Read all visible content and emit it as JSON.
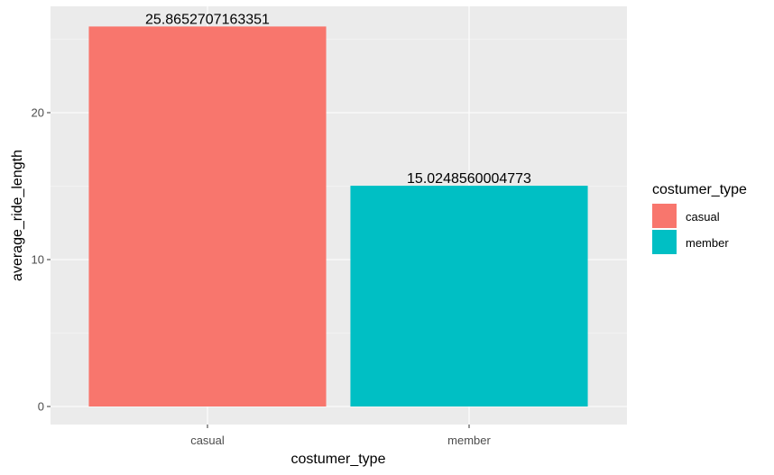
{
  "chart_data": {
    "type": "bar",
    "title": "",
    "xlabel": "costumer_type",
    "ylabel": "average_ride_length",
    "categories": [
      "casual",
      "member"
    ],
    "values": [
      25.8652707163351,
      15.0248560004773
    ],
    "data_labels": [
      "25.8652707163351",
      "15.0248560004773"
    ],
    "colors": [
      "#F8766D",
      "#00BFC4"
    ],
    "ylim": [
      0,
      27.2
    ],
    "y_ticks": [
      0,
      10,
      20
    ],
    "y_tick_labels": [
      "0",
      "10",
      "20"
    ],
    "grid": true,
    "panel_background": "#EBEBEB",
    "legend": {
      "title": "costumer_type",
      "position": "right",
      "items": [
        {
          "label": "casual",
          "color": "#F8766D"
        },
        {
          "label": "member",
          "color": "#00BFC4"
        }
      ]
    }
  }
}
